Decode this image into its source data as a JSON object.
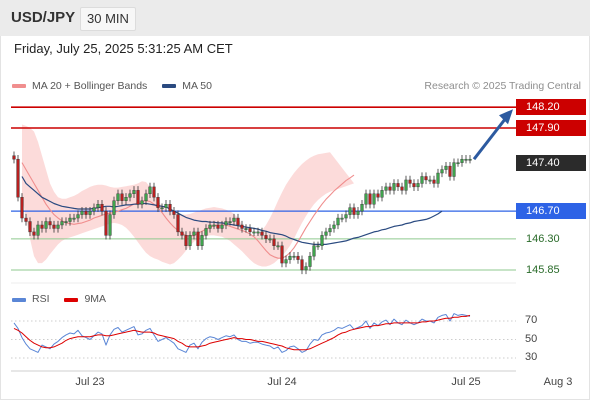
{
  "header": {
    "symbol": "USD/JPY",
    "timeframe": "30 MIN"
  },
  "timestamp": "Friday, July 25, 2025 5:31:25 AM CET",
  "legend": [
    {
      "label": "MA 20 + Bollinger Bands",
      "color": "#f08e8e"
    },
    {
      "label": "MA 50",
      "color": "#2a4a80"
    }
  ],
  "credit": "Research © 2025 Trading Central",
  "rsi_legend": [
    {
      "label": "RSI",
      "color": "#5a86d6"
    },
    {
      "label": "9MA",
      "color": "#dd0000"
    }
  ],
  "levels": [
    {
      "label": "148.20",
      "value": 148.2,
      "style": "red"
    },
    {
      "label": "147.90",
      "value": 147.9,
      "style": "red"
    },
    {
      "label": "147.40",
      "value": 147.4,
      "style": "dark"
    },
    {
      "label": "146.70",
      "value": 146.7,
      "style": "blue"
    },
    {
      "label": "146.30",
      "value": 146.3,
      "style": "plain"
    },
    {
      "label": "145.85",
      "value": 145.85,
      "style": "plain"
    }
  ],
  "x_labels": [
    {
      "label": "Jul 23",
      "bar": 19
    },
    {
      "label": "Jul 24",
      "bar": 67
    },
    {
      "label": "Jul 25",
      "bar": 113
    },
    {
      "label": "Aug 3",
      "bar": 136
    }
  ],
  "rsi_levels": [
    "70",
    "50",
    "30"
  ],
  "chart_data": {
    "type": "candlestick",
    "price_close": [
      147.45,
      146.9,
      146.6,
      146.55,
      146.4,
      146.35,
      146.5,
      146.45,
      146.55,
      146.5,
      146.45,
      146.5,
      146.55,
      146.55,
      146.6,
      146.6,
      146.65,
      146.7,
      146.65,
      146.7,
      146.75,
      146.8,
      146.7,
      146.35,
      146.65,
      146.85,
      146.95,
      146.85,
      146.9,
      146.95,
      147.0,
      146.8,
      146.85,
      146.95,
      147.05,
      146.9,
      146.75,
      146.75,
      146.8,
      146.7,
      146.65,
      146.4,
      146.35,
      146.2,
      146.35,
      146.4,
      146.2,
      146.35,
      146.45,
      146.5,
      146.5,
      146.45,
      146.5,
      146.55,
      146.55,
      146.6,
      146.5,
      146.45,
      146.45,
      146.4,
      146.4,
      146.4,
      146.35,
      146.3,
      146.3,
      146.2,
      146.2,
      145.95,
      146.0,
      146.05,
      146.05,
      146.0,
      145.85,
      145.9,
      146.05,
      146.2,
      146.2,
      146.35,
      146.4,
      146.45,
      146.5,
      146.6,
      146.6,
      146.65,
      146.75,
      146.65,
      146.7,
      146.8,
      146.95,
      146.8,
      146.95,
      146.9,
      147.0,
      147.05,
      147.0,
      147.1,
      147.05,
      147.0,
      147.15,
      147.1,
      147.05,
      147.1,
      147.2,
      147.15,
      147.15,
      147.1,
      147.25,
      147.3,
      147.35,
      147.2,
      147.4,
      147.4,
      147.45,
      147.45,
      147.45
    ],
    "ma50": [
      147.2,
      147.1,
      147.05,
      147.0,
      146.95,
      146.9,
      146.87,
      146.84,
      146.81,
      146.79,
      146.77,
      146.76,
      146.75,
      146.74,
      146.73,
      146.73,
      146.73,
      146.73,
      146.74,
      146.75,
      146.76,
      146.77,
      146.77,
      146.76,
      146.77,
      146.78,
      146.79,
      146.79,
      146.8,
      146.8,
      146.81,
      146.81,
      146.8,
      146.79,
      146.78,
      146.77,
      146.76,
      146.73,
      146.7,
      146.67,
      146.64,
      146.61,
      146.59,
      146.57,
      146.56,
      146.55,
      146.55,
      146.54,
      146.54,
      146.53,
      146.53,
      146.52,
      146.51,
      146.5,
      146.49,
      146.48,
      146.47,
      146.46,
      146.45,
      146.44,
      146.42,
      146.41,
      146.39,
      146.38,
      146.37,
      146.36,
      146.34,
      146.31,
      146.29,
      146.27,
      146.25,
      146.24,
      146.23,
      146.22,
      146.22,
      146.22,
      146.22,
      146.23,
      146.24,
      146.25,
      146.26,
      146.27,
      146.29,
      146.31,
      146.32,
      146.34,
      146.36,
      146.38,
      146.4,
      146.41,
      146.43,
      146.44,
      146.46,
      146.48,
      146.49,
      146.5,
      146.52,
      146.53,
      146.55,
      146.56,
      146.57,
      146.58,
      146.6,
      146.63,
      146.66,
      146.7
    ],
    "ma20": [
      147.4,
      147.3,
      147.2,
      147.1,
      147.0,
      146.9,
      146.8,
      146.72,
      146.65,
      146.6,
      146.56,
      146.53,
      146.52,
      146.51,
      146.52,
      146.53,
      146.55,
      146.57,
      146.6,
      146.62,
      146.64,
      146.66,
      146.67,
      146.68,
      146.7,
      146.72,
      146.74,
      146.77,
      146.8,
      146.82,
      146.84,
      146.85,
      146.84,
      146.8,
      146.75,
      146.68,
      146.6,
      146.53,
      146.47,
      146.42,
      146.38,
      146.35,
      146.34,
      146.35,
      146.38,
      146.41,
      146.44,
      146.47,
      146.49,
      146.5,
      146.5,
      146.5,
      146.48,
      146.46,
      146.44,
      146.42,
      146.4,
      146.37,
      146.33,
      146.27,
      146.2,
      146.13,
      146.07,
      146.04,
      146.02,
      146.02,
      146.05,
      146.1,
      146.17,
      146.26,
      146.36,
      146.46,
      146.55,
      146.64,
      146.72,
      146.8,
      146.87,
      146.93,
      146.99,
      147.04,
      147.09,
      147.14,
      147.18,
      147.22
    ],
    "bb_upper": [
      147.95,
      147.93,
      147.9,
      147.85,
      147.7,
      147.5,
      147.3,
      147.1,
      146.98,
      146.9,
      146.88,
      146.88,
      146.9,
      146.92,
      146.95,
      146.99,
      147.02,
      147.05,
      147.07,
      147.08,
      147.08,
      147.07,
      147.05,
      147.04,
      147.04,
      147.05,
      147.06,
      147.07,
      147.08,
      147.1,
      147.13,
      147.12,
      147.05,
      146.95,
      146.85,
      146.77,
      146.72,
      146.7,
      146.68,
      146.66,
      146.65,
      146.65,
      146.66,
      146.68,
      146.7,
      146.72,
      146.74,
      146.75,
      146.76,
      146.75,
      146.74,
      146.72,
      146.7,
      146.66,
      146.6,
      146.5,
      146.4,
      146.35,
      146.35,
      146.37,
      146.42,
      146.5,
      146.6,
      146.72,
      146.85,
      146.97,
      147.08,
      147.17,
      147.25,
      147.32,
      147.38,
      147.43,
      147.47,
      147.5,
      147.52,
      147.53,
      147.54,
      147.55
    ],
    "bb_lower": [
      146.9,
      146.6,
      146.3,
      146.05,
      145.95,
      145.95,
      146.0,
      146.08,
      146.15,
      146.22,
      146.27,
      146.3,
      146.32,
      146.34,
      146.36,
      146.38,
      146.4,
      146.42,
      146.44,
      146.46,
      146.48,
      146.5,
      146.52,
      146.53,
      146.52,
      146.5,
      146.46,
      146.4,
      146.33,
      146.25,
      146.17,
      146.1,
      146.05,
      146.02,
      146.0,
      145.97,
      145.95,
      145.93,
      145.95,
      146.0,
      146.06,
      146.13,
      146.2,
      146.26,
      146.3,
      146.32,
      146.34,
      146.35,
      146.35,
      146.34,
      146.33,
      146.3,
      146.27,
      146.22,
      146.17,
      146.12,
      146.06,
      146.0,
      145.95,
      145.92,
      145.9,
      145.9,
      145.92,
      145.95,
      146.0,
      146.05,
      146.12,
      146.2,
      146.3,
      146.42,
      146.53,
      146.63,
      146.72,
      146.8,
      146.86,
      146.91,
      146.95,
      146.98,
      147.0,
      147.02,
      147.04,
      147.06,
      147.08,
      147.1
    ],
    "rsi": [
      68,
      62,
      52,
      45,
      40,
      38,
      36,
      44,
      42,
      40,
      45,
      48,
      52,
      55,
      57,
      56,
      60,
      54,
      52,
      50,
      54,
      58,
      56,
      44,
      55,
      61,
      63,
      58,
      60,
      62,
      64,
      55,
      56,
      60,
      62,
      55,
      48,
      50,
      52,
      49,
      46,
      40,
      38,
      36,
      44,
      46,
      40,
      47,
      51,
      53,
      52,
      50,
      52,
      54,
      53,
      55,
      50,
      48,
      48,
      46,
      47,
      47,
      45,
      44,
      43,
      40,
      42,
      36,
      38,
      42,
      43,
      40,
      36,
      38,
      45,
      50,
      49,
      55,
      57,
      58,
      60,
      63,
      62,
      64,
      66,
      61,
      63,
      65,
      70,
      62,
      68,
      65,
      69,
      71,
      66,
      72,
      68,
      66,
      71,
      68,
      66,
      68,
      72,
      70,
      70,
      68,
      74,
      76,
      77,
      70,
      78,
      76,
      77,
      76,
      75
    ],
    "rsi_ma": [
      62,
      60,
      57,
      53,
      49,
      46,
      44,
      42,
      41,
      41,
      42,
      44,
      46,
      49,
      51,
      52,
      53,
      53,
      53,
      53,
      54,
      55,
      55,
      54,
      54,
      55,
      56,
      57,
      58,
      59,
      60,
      59,
      58,
      58,
      58,
      57,
      55,
      54,
      53,
      52,
      51,
      48,
      46,
      43,
      42,
      42,
      42,
      43,
      44,
      46,
      47,
      48,
      49,
      50,
      51,
      52,
      51,
      51,
      50,
      50,
      49,
      48,
      48,
      47,
      46,
      45,
      44,
      43,
      41,
      40,
      39,
      39,
      39,
      39,
      40,
      42,
      44,
      46,
      48,
      50,
      52,
      55,
      57,
      58,
      60,
      61,
      62,
      63,
      64,
      64,
      65,
      65,
      66,
      67,
      67,
      68,
      68,
      68,
      68,
      68,
      68,
      68,
      69,
      69,
      70,
      70,
      71,
      72,
      73,
      73,
      74,
      74,
      75,
      75,
      76
    ]
  }
}
